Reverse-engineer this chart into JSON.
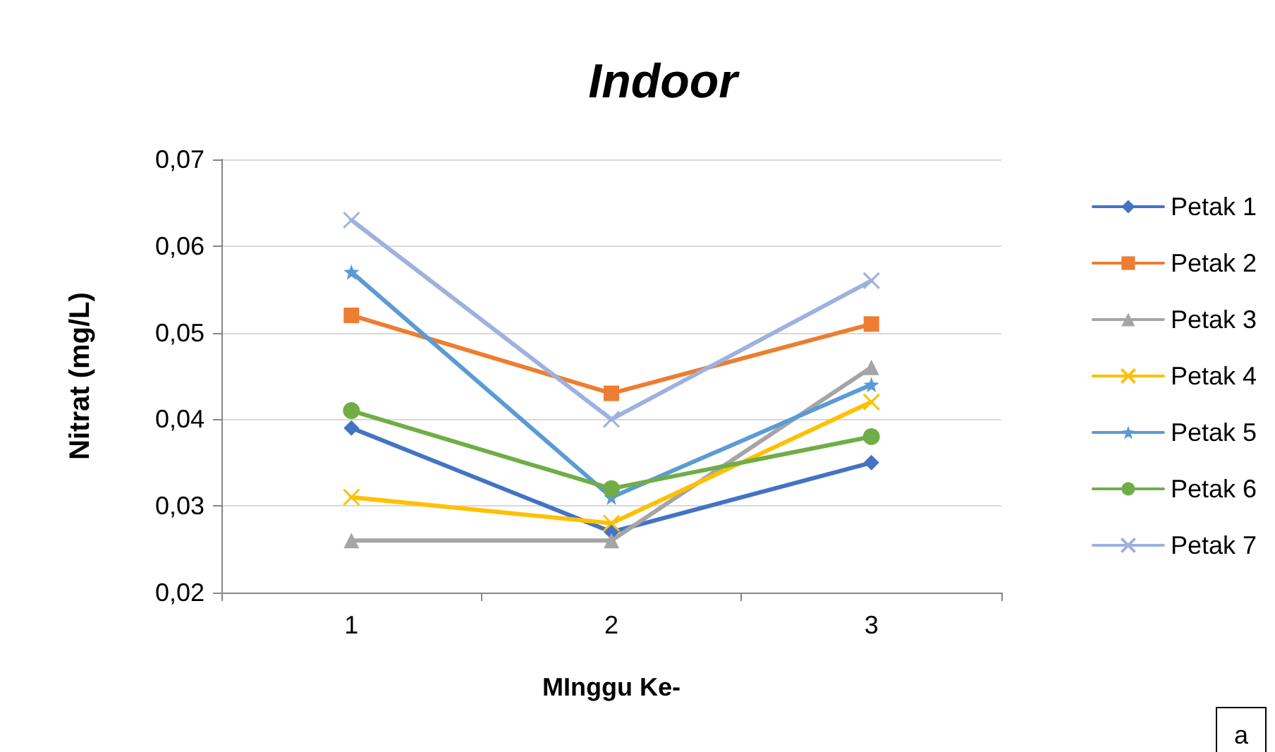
{
  "chart_data": {
    "type": "line",
    "title": "Indoor",
    "xlabel": "MInggu Ke-",
    "ylabel": "Nitrat (mg/L)",
    "categories": [
      "1",
      "2",
      "3"
    ],
    "ylim": [
      0.02,
      0.07
    ],
    "yticks": [
      {
        "value": 0.02,
        "label": "0,02"
      },
      {
        "value": 0.03,
        "label": "0,03"
      },
      {
        "value": 0.04,
        "label": "0,04"
      },
      {
        "value": 0.05,
        "label": "0,05"
      },
      {
        "value": 0.06,
        "label": "0,06"
      },
      {
        "value": 0.07,
        "label": "0,07"
      }
    ],
    "grid": "y",
    "legend": "right",
    "line_style": "solid",
    "annotations": [
      "a"
    ],
    "series": [
      {
        "name": "Petak 1",
        "color": "#4472c4",
        "marker": "diamond",
        "values": [
          0.039,
          0.027,
          0.035
        ]
      },
      {
        "name": "Petak 2",
        "color": "#ed7d31",
        "marker": "square",
        "values": [
          0.052,
          0.043,
          0.051
        ]
      },
      {
        "name": "Petak 3",
        "color": "#a5a5a5",
        "marker": "triangle",
        "values": [
          0.026,
          0.026,
          0.046
        ]
      },
      {
        "name": "Petak 4",
        "color": "#ffc000",
        "marker": "cross",
        "values": [
          0.031,
          0.028,
          0.042
        ]
      },
      {
        "name": "Petak 5",
        "color": "#5b9bd5",
        "marker": "star",
        "values": [
          0.057,
          0.031,
          0.044
        ]
      },
      {
        "name": "Petak 6",
        "color": "#70ad47",
        "marker": "circle",
        "values": [
          0.041,
          0.032,
          0.038
        ]
      },
      {
        "name": "Petak 7",
        "color": "#9eb1df",
        "marker": "cross",
        "values": [
          0.063,
          0.04,
          0.056
        ]
      }
    ]
  }
}
